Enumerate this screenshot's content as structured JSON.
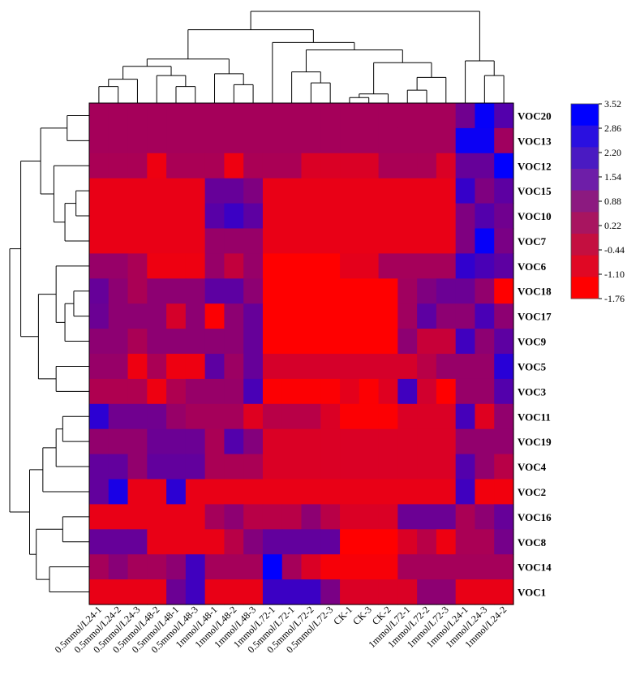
{
  "chart_data": {
    "type": "heatmap",
    "columns": [
      "0.5mmol/L24-1",
      "0.5mmol/L24-2",
      "0.5mmol/L24-3",
      "0.5mmol/L48-2",
      "0.5mmol/L48-1",
      "0.5mmol/L48-3",
      "1mmol/L48-1",
      "1mmol/L48-2",
      "1mmol/L48-3",
      "1mmol/L72-1",
      "0.5mmol/L72-1",
      "0.5mmol/L72-2",
      "0.5mmol/L72-3",
      "CK-1",
      "CK-3",
      "CK-2",
      "1mmol/L72-1",
      "1mmol/L72-2",
      "1mmol/L72-3",
      "1mmol/L24-1",
      "1mmol/L24-3",
      "1mmol/L24-2"
    ],
    "rows": [
      "VOC20",
      "VOC13",
      "VOC12",
      "VOC15",
      "VOC10",
      "VOC7",
      "VOC6",
      "VOC18",
      "VOC17",
      "VOC9",
      "VOC5",
      "VOC3",
      "VOC11",
      "VOC19",
      "VOC4",
      "VOC2",
      "VOC16",
      "VOC8",
      "VOC14",
      "VOC1"
    ],
    "values": [
      [
        0.1,
        0.1,
        0.1,
        0.1,
        0.1,
        0.1,
        0.1,
        0.1,
        0.1,
        0.1,
        0.1,
        0.1,
        0.1,
        0.1,
        0.1,
        0.1,
        0.1,
        0.1,
        0.1,
        1.2,
        3.4,
        1.8
      ],
      [
        0.1,
        0.1,
        0.1,
        0.1,
        0.1,
        0.1,
        0.1,
        0.1,
        0.1,
        0.1,
        0.1,
        0.1,
        0.1,
        0.1,
        0.1,
        0.1,
        0.1,
        0.1,
        0.1,
        3.3,
        3.3,
        0.2
      ],
      [
        0.0,
        0.0,
        0.0,
        -1.4,
        0.0,
        0.0,
        0.0,
        -1.4,
        0.0,
        0.0,
        0.0,
        -1.0,
        -1.0,
        -1.0,
        -1.0,
        0.0,
        0.0,
        0.0,
        -1.0,
        1.4,
        1.4,
        3.5
      ],
      [
        -1.3,
        -1.3,
        -1.3,
        -1.3,
        -1.3,
        -1.3,
        1.4,
        1.4,
        0.9,
        -1.3,
        -1.3,
        -1.3,
        -1.3,
        -1.3,
        -1.3,
        -1.3,
        -1.3,
        -1.3,
        -1.3,
        2.4,
        0.9,
        1.6
      ],
      [
        -1.3,
        -1.3,
        -1.3,
        -1.3,
        -1.3,
        -1.3,
        1.7,
        2.3,
        1.6,
        -1.3,
        -1.3,
        -1.3,
        -1.3,
        -1.3,
        -1.3,
        -1.3,
        -1.3,
        -1.3,
        -1.3,
        0.9,
        1.8,
        1.2
      ],
      [
        -1.3,
        -1.3,
        -1.3,
        -1.3,
        -1.3,
        -1.3,
        0.4,
        0.4,
        0.4,
        -1.3,
        -1.3,
        -1.3,
        -1.3,
        -1.3,
        -1.3,
        -1.3,
        -1.3,
        -1.3,
        -1.3,
        0.9,
        3.4,
        1.0
      ],
      [
        0.4,
        0.4,
        0.0,
        -1.4,
        -1.4,
        -1.4,
        0.4,
        -0.5,
        0.4,
        -1.8,
        -1.8,
        -1.8,
        -1.8,
        -1.2,
        -1.2,
        0.1,
        0.1,
        0.1,
        0.1,
        2.5,
        2.0,
        1.6
      ],
      [
        1.4,
        0.6,
        0.0,
        0.6,
        0.6,
        0.6,
        1.6,
        1.6,
        0.6,
        -1.8,
        -1.8,
        -1.8,
        -1.8,
        -1.8,
        -1.8,
        -1.8,
        0.2,
        0.9,
        1.3,
        1.3,
        0.5,
        -1.8
      ],
      [
        1.3,
        0.6,
        0.6,
        0.6,
        -0.9,
        0.6,
        -1.7,
        0.6,
        1.4,
        -1.8,
        -1.8,
        -1.8,
        -1.8,
        -1.8,
        -1.8,
        -1.8,
        0.2,
        1.6,
        0.6,
        0.6,
        2.0,
        0.6
      ],
      [
        0.6,
        0.6,
        0.0,
        0.6,
        0.6,
        0.6,
        0.6,
        0.6,
        1.4,
        -1.8,
        -1.8,
        -1.8,
        -1.8,
        -1.8,
        -1.8,
        -1.8,
        0.6,
        -0.6,
        -0.6,
        2.2,
        0.6,
        1.6
      ],
      [
        0.4,
        0.4,
        -1.4,
        0.0,
        -1.4,
        -1.4,
        1.6,
        0.3,
        1.4,
        -0.9,
        -0.9,
        -0.9,
        -0.9,
        -0.9,
        -0.9,
        -0.9,
        -0.9,
        -0.3,
        0.4,
        0.4,
        0.4,
        2.7
      ],
      [
        -0.1,
        -0.1,
        -0.1,
        -1.4,
        -0.1,
        0.4,
        0.4,
        0.4,
        2.0,
        -1.7,
        -1.7,
        -1.7,
        -1.7,
        -1.2,
        -1.7,
        -1.1,
        2.2,
        -0.8,
        -1.8,
        0.4,
        0.4,
        1.8
      ],
      [
        2.6,
        1.2,
        1.2,
        1.2,
        0.4,
        0.1,
        0.1,
        0.1,
        -1.1,
        -0.3,
        -0.3,
        -0.3,
        -1.0,
        -1.7,
        -1.7,
        -1.7,
        -1.0,
        -1.0,
        -1.0,
        2.1,
        -1.1,
        0.5
      ],
      [
        0.5,
        0.5,
        0.5,
        1.3,
        1.3,
        1.3,
        0.0,
        1.8,
        0.8,
        -1.0,
        -1.0,
        -1.0,
        -1.0,
        -1.0,
        -1.0,
        -1.0,
        -1.0,
        -1.0,
        -1.0,
        0.5,
        0.5,
        0.5
      ],
      [
        1.5,
        1.5,
        0.5,
        1.5,
        1.5,
        1.5,
        0.0,
        0.0,
        0.0,
        -1.0,
        -1.0,
        -1.0,
        -1.0,
        -1.0,
        -1.0,
        -1.0,
        -1.0,
        -1.0,
        -1.0,
        1.8,
        0.5,
        -0.3
      ],
      [
        1.5,
        3.0,
        -1.3,
        -1.3,
        2.6,
        -1.3,
        -1.3,
        -1.3,
        -1.3,
        -1.3,
        -1.3,
        -1.3,
        -1.3,
        -1.3,
        -1.3,
        -1.3,
        -1.3,
        -1.3,
        -1.3,
        2.2,
        -1.5,
        -1.5
      ],
      [
        -1.3,
        -1.3,
        -1.3,
        -1.3,
        -1.3,
        -1.3,
        0.1,
        0.6,
        -0.3,
        -0.3,
        -0.3,
        0.6,
        -0.3,
        -1.0,
        -1.0,
        -1.0,
        1.3,
        1.3,
        1.3,
        0.0,
        0.6,
        1.4
      ],
      [
        1.4,
        1.4,
        1.4,
        -1.3,
        -1.3,
        -1.3,
        -1.3,
        -0.3,
        0.8,
        1.5,
        1.5,
        1.5,
        1.5,
        -1.8,
        -1.8,
        -1.8,
        -1.0,
        -0.3,
        -1.4,
        0.0,
        0.0,
        1.1
      ],
      [
        0.1,
        0.7,
        0.1,
        0.1,
        0.6,
        2.2,
        0.1,
        0.1,
        0.1,
        3.5,
        0.1,
        -1.0,
        -1.6,
        -1.6,
        -1.6,
        -1.6,
        0.1,
        0.1,
        0.1,
        0.1,
        0.1,
        0.1
      ],
      [
        -1.3,
        -1.3,
        -1.3,
        -1.3,
        1.3,
        2.2,
        -1.3,
        -1.3,
        -1.3,
        2.3,
        2.3,
        2.3,
        1.0,
        -1.0,
        -1.0,
        -1.0,
        -1.0,
        0.6,
        0.6,
        -1.3,
        -1.3,
        -1.3
      ]
    ],
    "legend": {
      "ticks": [
        "3.52",
        "2.86",
        "2.20",
        "1.54",
        "0.88",
        "0.22",
        "-0.44",
        "-1.10",
        "-1.76"
      ],
      "colors": [
        "#0000ff",
        "#2a10e0",
        "#4a1ac2",
        "#6e1ea8",
        "#8c1a80",
        "#a81560",
        "#c40f40",
        "#e00824",
        "#ff0000"
      ],
      "range": [
        -1.76,
        3.52
      ]
    },
    "row_order_note": "",
    "legend_position": "right"
  }
}
